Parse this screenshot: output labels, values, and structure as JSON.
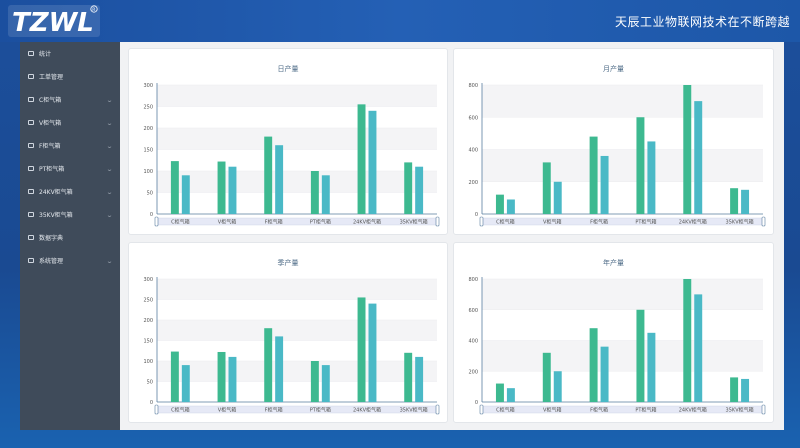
{
  "header": {
    "slogan": "天辰工业物联网技术在不断跨越",
    "logo_text": "TZWL"
  },
  "colors": {
    "bar_a": "#3db990",
    "bar_b": "#4ab9c6",
    "accent": "#2c5fb0"
  },
  "sidebar": {
    "items": [
      {
        "label": "统计",
        "icon": "dashboard-icon",
        "expandable": false
      },
      {
        "label": "工单管理",
        "icon": "workorder-icon",
        "expandable": false
      },
      {
        "label": "C柜气箱",
        "icon": "cabinet-icon",
        "expandable": true
      },
      {
        "label": "V柜气箱",
        "icon": "cabinet-icon",
        "expandable": true
      },
      {
        "label": "F柜气箱",
        "icon": "cabinet-icon",
        "expandable": true
      },
      {
        "label": "PT柜气箱",
        "icon": "cabinet-icon",
        "expandable": true
      },
      {
        "label": "24KV柜气箱",
        "icon": "cabinet-icon",
        "expandable": true
      },
      {
        "label": "35KV柜气箱",
        "icon": "cabinet-icon",
        "expandable": true
      },
      {
        "label": "数据字典",
        "icon": "dictionary-icon",
        "expandable": false
      },
      {
        "label": "系统管理",
        "icon": "settings-icon",
        "expandable": true
      }
    ]
  },
  "chart_data": [
    {
      "type": "bar",
      "title": "日产量",
      "categories": [
        "C柜气箱",
        "V柜气箱",
        "F柜气箱",
        "PT柜气箱",
        "24KV柜气箱",
        "35KV柜气箱"
      ],
      "series": [
        {
          "values": [
            123,
            122,
            180,
            100,
            255,
            120
          ]
        },
        {
          "values": [
            90,
            110,
            160,
            90,
            240,
            110
          ]
        }
      ],
      "ylim": [
        0,
        300
      ],
      "yticks": [
        0,
        50,
        100,
        150,
        200,
        250,
        300
      ],
      "grid": true
    },
    {
      "type": "bar",
      "title": "月产量",
      "categories": [
        "C柜气箱",
        "V柜气箱",
        "F柜气箱",
        "PT柜气箱",
        "24KV柜气箱",
        "35KV柜气箱"
      ],
      "series": [
        {
          "values": [
            120,
            320,
            480,
            600,
            800,
            160
          ]
        },
        {
          "values": [
            90,
            200,
            360,
            450,
            700,
            150
          ]
        }
      ],
      "ylim": [
        0,
        800
      ],
      "yticks": [
        0,
        200,
        400,
        600,
        800
      ],
      "grid": true
    },
    {
      "type": "bar",
      "title": "季产量",
      "categories": [
        "C柜气箱",
        "V柜气箱",
        "F柜气箱",
        "PT柜气箱",
        "24KV柜气箱",
        "35KV柜气箱"
      ],
      "series": [
        {
          "values": [
            123,
            122,
            180,
            100,
            255,
            120
          ]
        },
        {
          "values": [
            90,
            110,
            160,
            90,
            240,
            110
          ]
        }
      ],
      "ylim": [
        0,
        300
      ],
      "yticks": [
        0,
        50,
        100,
        150,
        200,
        250,
        300
      ],
      "grid": true
    },
    {
      "type": "bar",
      "title": "年产量",
      "categories": [
        "C柜气箱",
        "V柜气箱",
        "F柜气箱",
        "PT柜气箱",
        "24KV柜气箱",
        "35KV柜气箱"
      ],
      "series": [
        {
          "values": [
            120,
            320,
            480,
            600,
            800,
            160
          ]
        },
        {
          "values": [
            90,
            200,
            360,
            450,
            700,
            150
          ]
        }
      ],
      "ylim": [
        0,
        800
      ],
      "yticks": [
        0,
        200,
        400,
        600,
        800
      ],
      "grid": true
    }
  ]
}
